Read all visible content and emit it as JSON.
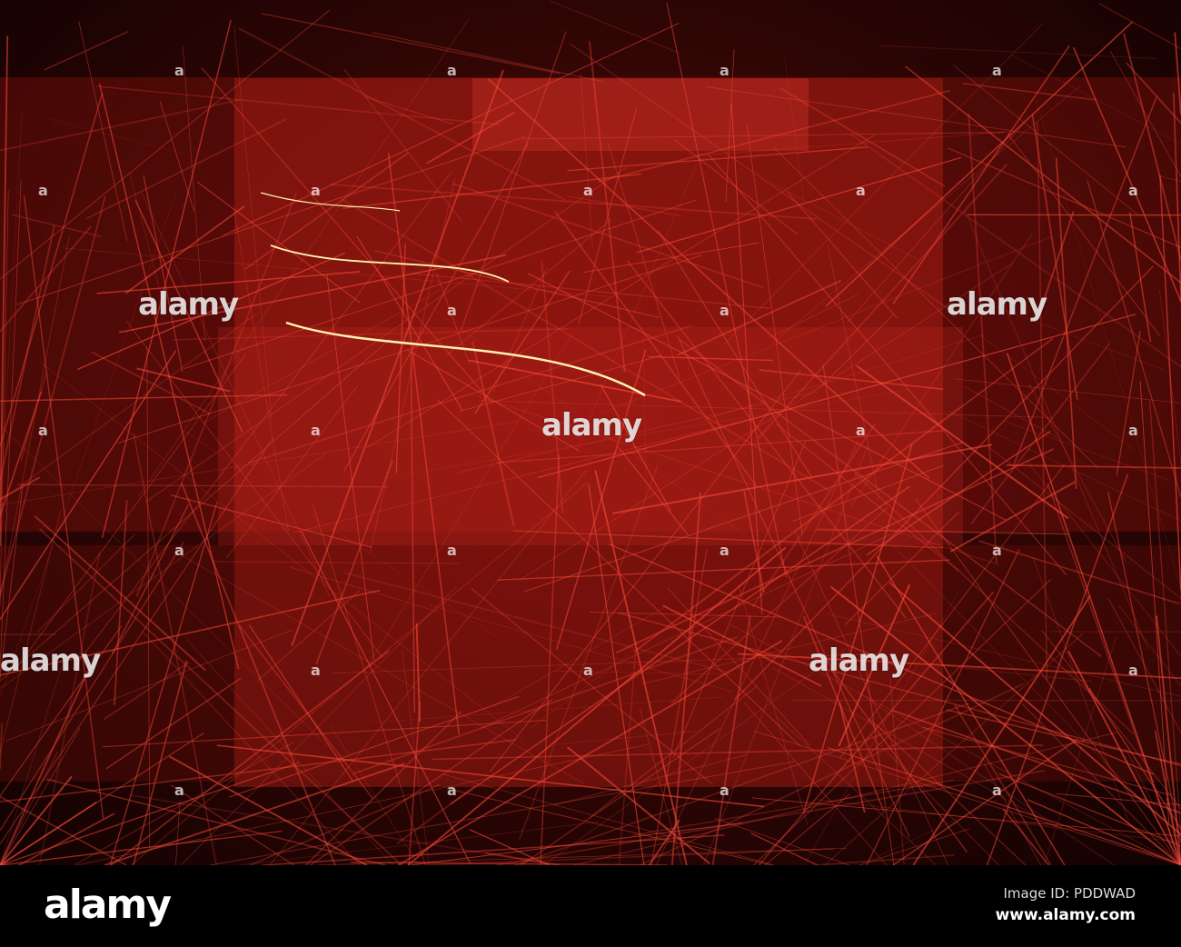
{
  "watermark": {
    "text": "alamy",
    "mark": "a"
  },
  "footer": {
    "logo": "alamy",
    "image_id": "Image ID: PDDWAD",
    "site": "www.alamy.com"
  },
  "colors": {
    "background": "#2a0504",
    "line": "#ff4a3a",
    "highlight": "#fff2b0",
    "bar": "#000000"
  }
}
